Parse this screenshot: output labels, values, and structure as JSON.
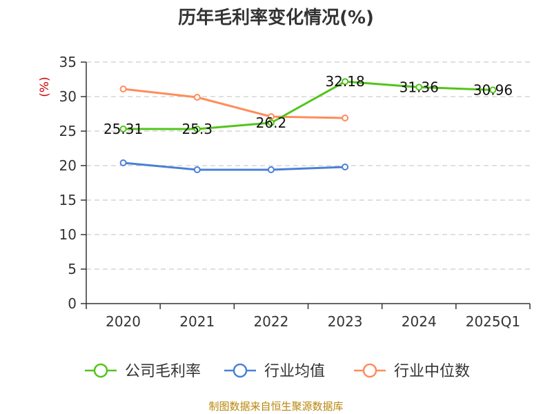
{
  "chart_data": {
    "type": "line",
    "title": "历年毛利率变化情况(%)",
    "ylabel": "(%)",
    "xlabel": "",
    "ylim": [
      0,
      35
    ],
    "yticks": [
      0,
      5,
      10,
      15,
      20,
      25,
      30,
      35
    ],
    "categories": [
      "2020",
      "2021",
      "2022",
      "2023",
      "2024",
      "2025Q1"
    ],
    "grid": true,
    "legend_position": "bottom",
    "series": [
      {
        "name": "公司毛利率",
        "color": "#52c41a",
        "values": [
          25.31,
          25.3,
          26.2,
          32.18,
          31.36,
          30.96
        ],
        "labels": [
          "25.31",
          "25.3",
          "26.2",
          "32.18",
          "31.36",
          "30.96"
        ]
      },
      {
        "name": "行业均值",
        "color": "#4a7fd8",
        "values": [
          20.4,
          19.4,
          19.4,
          19.8,
          null,
          null
        ]
      },
      {
        "name": "行业中位数",
        "color": "#ff8c5a",
        "values": [
          31.1,
          29.9,
          27.1,
          26.9,
          null,
          null
        ]
      }
    ]
  },
  "source_text": "制图数据来自恒生聚源数据库"
}
